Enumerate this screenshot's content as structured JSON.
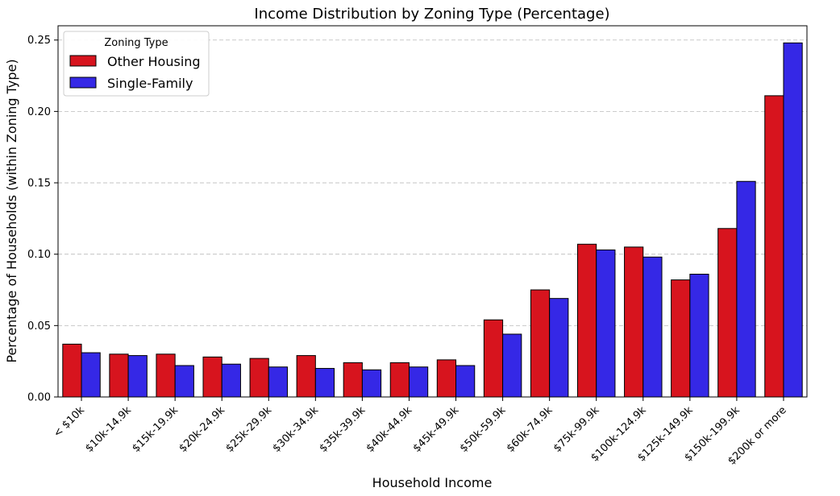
{
  "chart_data": {
    "type": "bar",
    "title": "Income Distribution by Zoning Type (Percentage)",
    "xlabel": "Household Income",
    "ylabel": "Percentage of Households (within Zoning Type)",
    "categories": [
      "< $10k",
      "$10k-14.9k",
      "$15k-19.9k",
      "$20k-24.9k",
      "$25k-29.9k",
      "$30k-34.9k",
      "$35k-39.9k",
      "$40k-44.9k",
      "$45k-49.9k",
      "$50k-59.9k",
      "$60k-74.9k",
      "$75k-99.9k",
      "$100k-124.9k",
      "$125k-149.9k",
      "$150k-199.9k",
      "$200k or more"
    ],
    "series": [
      {
        "name": "Other Housing",
        "color": "#d7141e",
        "values": [
          0.037,
          0.03,
          0.03,
          0.028,
          0.027,
          0.029,
          0.024,
          0.024,
          0.026,
          0.054,
          0.075,
          0.107,
          0.105,
          0.082,
          0.118,
          0.211
        ]
      },
      {
        "name": "Single-Family",
        "color": "#3528e6",
        "values": [
          0.031,
          0.029,
          0.022,
          0.023,
          0.021,
          0.02,
          0.019,
          0.021,
          0.022,
          0.044,
          0.069,
          0.103,
          0.098,
          0.086,
          0.151,
          0.248
        ]
      }
    ],
    "ylim": [
      0,
      0.26
    ],
    "yticks": [
      "0.00",
      "0.05",
      "0.10",
      "0.15",
      "0.20",
      "0.25"
    ],
    "grid": "y-dashed",
    "legend": {
      "title": "Zoning Type",
      "position": "top-left"
    }
  }
}
